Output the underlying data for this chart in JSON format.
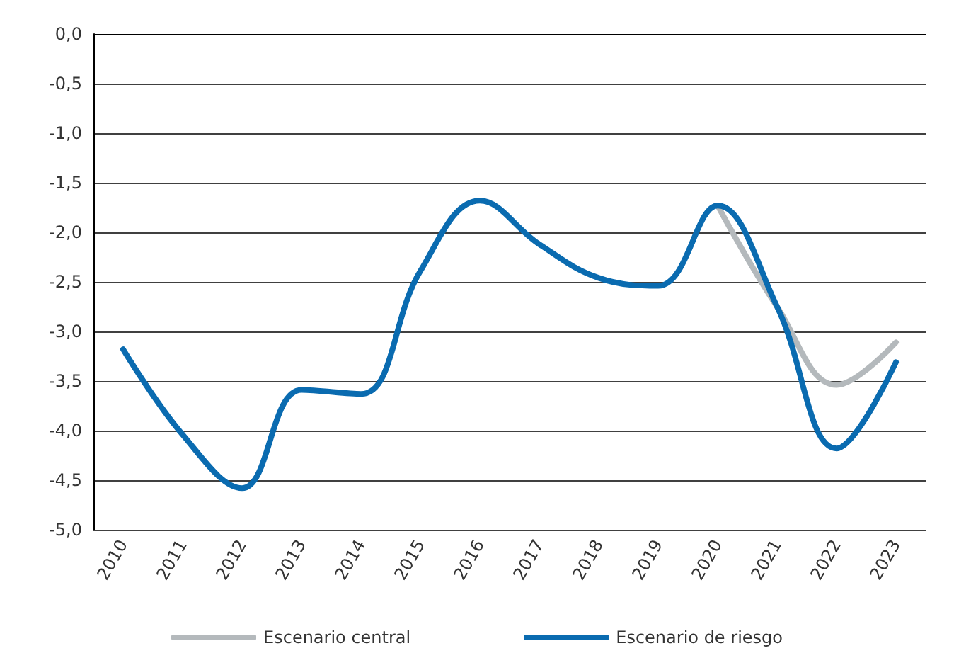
{
  "chart_data": {
    "type": "line",
    "categories": [
      "2010",
      "2011",
      "2012",
      "2013",
      "2014",
      "2015",
      "2016",
      "2017",
      "2018",
      "2019",
      "2020",
      "2021",
      "2022",
      "2023"
    ],
    "series": [
      {
        "name": "Escenario central",
        "color": "#b4b9bc",
        "values": [
          null,
          null,
          null,
          null,
          null,
          null,
          null,
          null,
          null,
          null,
          -1.73,
          -2.75,
          -3.54,
          -3.11
        ]
      },
      {
        "name": "Escenario de riesgo",
        "color": "#0a6bb0",
        "values": [
          -3.18,
          -4.04,
          -4.58,
          -3.59,
          -3.63,
          -2.39,
          -1.68,
          -2.12,
          -2.46,
          -2.54,
          -1.73,
          -2.75,
          -4.18,
          -3.31
        ]
      }
    ],
    "ylim": [
      -5,
      0
    ],
    "yticks": [
      {
        "value": -5,
        "label": "-5,0"
      },
      {
        "value": -4.5,
        "label": "-4,5"
      },
      {
        "value": -4,
        "label": "-4,0"
      },
      {
        "value": -3.5,
        "label": "-3,5"
      },
      {
        "value": -3,
        "label": "-3,0"
      },
      {
        "value": -2.5,
        "label": "-2,5"
      },
      {
        "value": -2,
        "label": "-2,0"
      },
      {
        "value": -1.5,
        "label": "-1,5"
      },
      {
        "value": -1,
        "label": "-1,0"
      },
      {
        "value": -0.5,
        "label": "-0,5"
      },
      {
        "value": 0,
        "label": "0,0"
      }
    ],
    "grid": "y",
    "legend": "bottom",
    "marker": "none",
    "line_style": "solid"
  }
}
